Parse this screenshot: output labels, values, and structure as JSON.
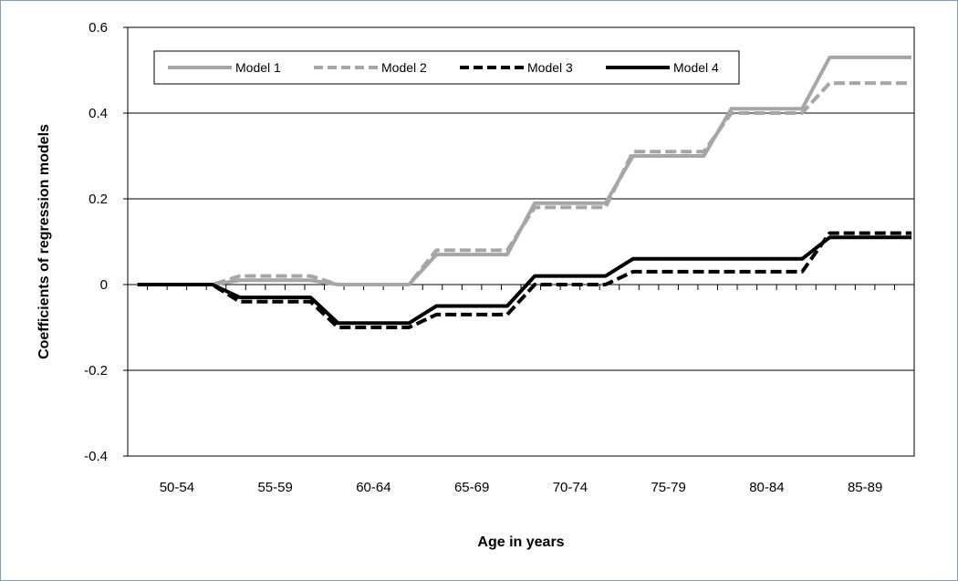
{
  "chart_data": {
    "type": "line",
    "step": true,
    "categories": [
      "50-54",
      "55-59",
      "60-64",
      "65-69",
      "70-74",
      "75-79",
      "80-84",
      "85-89"
    ],
    "series": [
      {
        "name": "Model 1",
        "values": [
          0,
          0.01,
          0,
          0.07,
          0.19,
          0.3,
          0.41,
          0.53
        ],
        "color": "#a6a6a6",
        "dash": "solid"
      },
      {
        "name": "Model 2",
        "values": [
          0,
          0.02,
          0,
          0.08,
          0.18,
          0.31,
          0.4,
          0.47
        ],
        "color": "#a6a6a6",
        "dash": "dashed"
      },
      {
        "name": "Model 3",
        "values": [
          0,
          -0.04,
          -0.1,
          -0.07,
          0,
          0.03,
          0.03,
          0.12
        ],
        "color": "#000000",
        "dash": "dashed"
      },
      {
        "name": "Model 4",
        "values": [
          0,
          -0.03,
          -0.09,
          -0.05,
          0.02,
          0.06,
          0.06,
          0.11
        ],
        "color": "#000000",
        "dash": "solid"
      }
    ],
    "xlabel": "Age in years",
    "ylabel": "Coefficients of regression models",
    "ylim": [
      -0.4,
      0.6
    ],
    "yticks": [
      "-0.4",
      "-0.2",
      "0",
      "0.2",
      "0.4",
      "0.6"
    ],
    "grid": "horizontal",
    "legend": "top-left"
  }
}
